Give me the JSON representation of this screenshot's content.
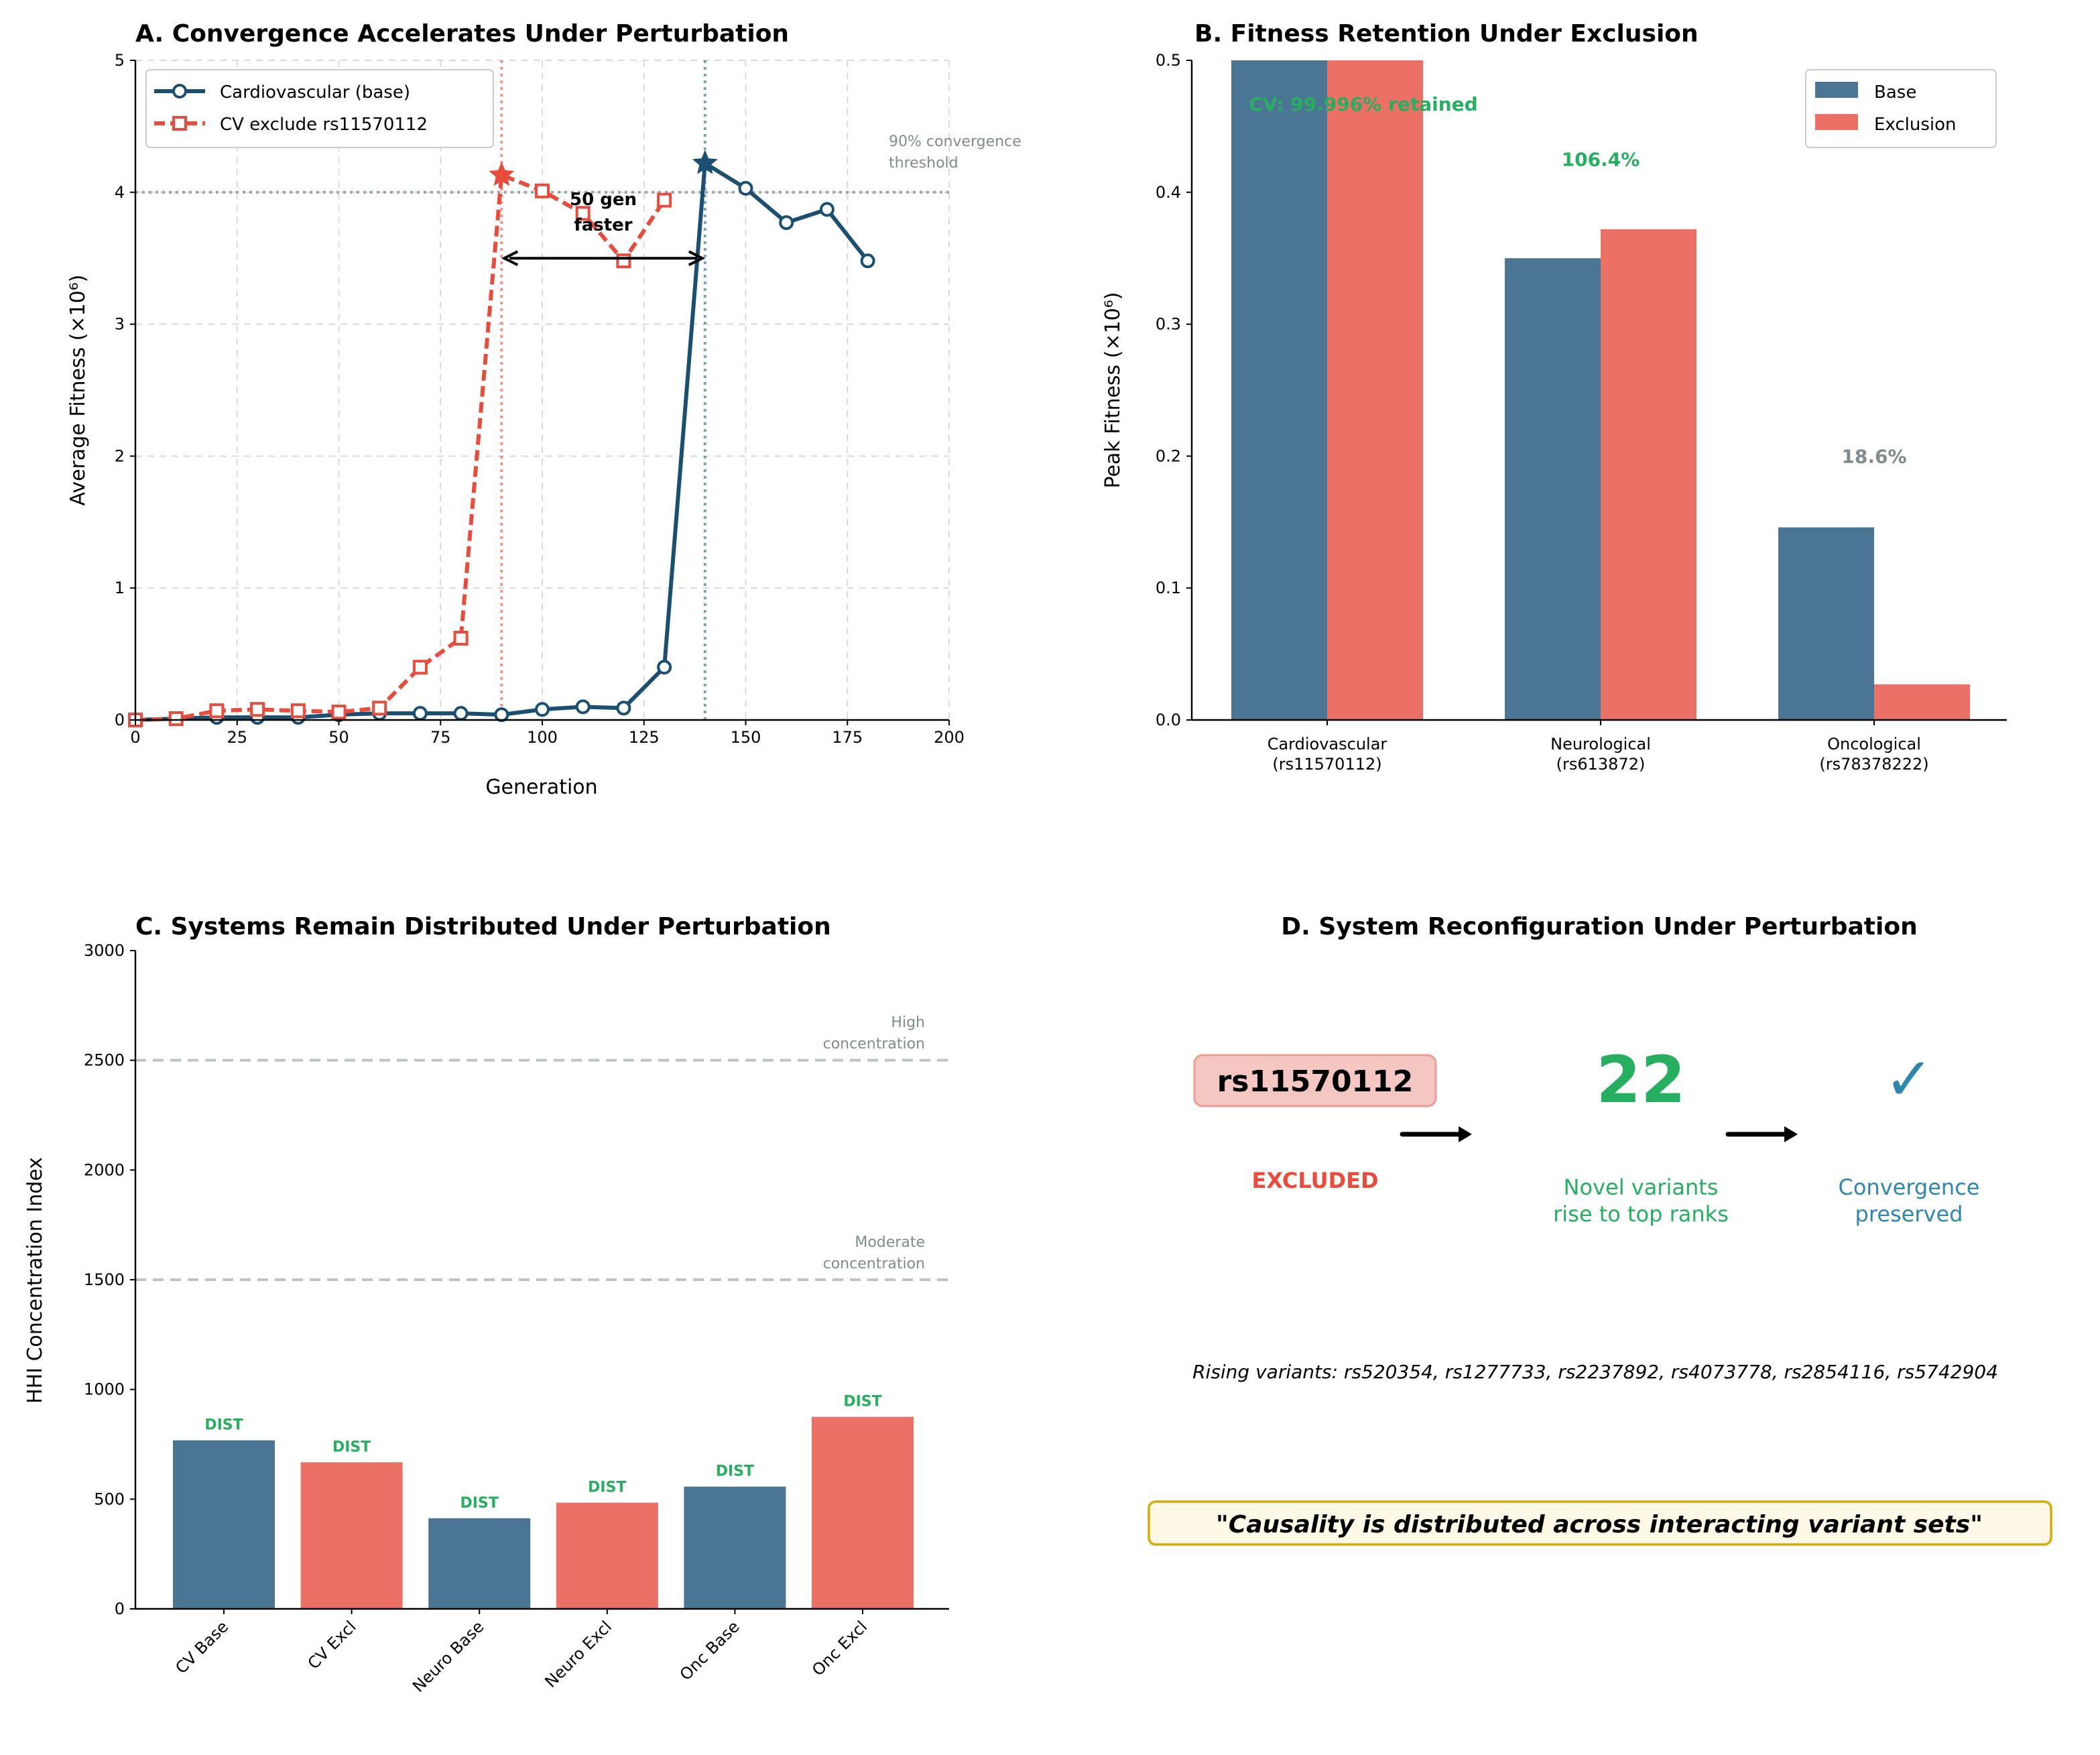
{
  "colors": {
    "base": "#1a4f72",
    "exclusion": "#e74c3c",
    "bar_base": "#4a7694",
    "bar_excl": "#eb7065",
    "green": "#27ae60",
    "blue": "#2e86ab",
    "gray": "#7f8c8d"
  },
  "chart_data": [
    {
      "type": "line",
      "title": "A. Convergence Accelerates Under Perturbation",
      "xlabel": "Generation",
      "ylabel": "Average Fitness (×10⁶)",
      "xlim": [
        0,
        200
      ],
      "ylim": [
        0,
        5
      ],
      "xticks": [
        "0",
        "25",
        "50",
        "75",
        "100",
        "125",
        "150",
        "175",
        "200"
      ],
      "yticks": [
        "0",
        "1",
        "2",
        "3",
        "4",
        "5"
      ],
      "grid": true,
      "legend_position": "top-left",
      "series": [
        {
          "name": "Cardiovascular (base)",
          "x": [
            0,
            10,
            20,
            30,
            40,
            50,
            60,
            70,
            80,
            90,
            100,
            110,
            120,
            130,
            140,
            150,
            160,
            170,
            180
          ],
          "y": [
            0,
            0.01,
            0.02,
            0.02,
            0.02,
            0.04,
            0.05,
            0.05,
            0.05,
            0.04,
            0.08,
            0.1,
            0.09,
            0.4,
            4.22,
            4.03,
            3.77,
            3.87,
            3.48
          ],
          "convergence_x": 140
        },
        {
          "name": "CV exclude rs11570112",
          "x": [
            0,
            10,
            20,
            30,
            40,
            50,
            60,
            70,
            80,
            90,
            100,
            110,
            120,
            130
          ],
          "y": [
            0,
            0.01,
            0.07,
            0.08,
            0.07,
            0.06,
            0.09,
            0.4,
            0.62,
            4.13,
            4.01,
            3.84,
            3.48,
            3.94
          ],
          "convergence_x": 90
        }
      ],
      "threshold": {
        "y": 4,
        "label_line1": "90% convergence",
        "label_line2": "threshold"
      },
      "annotation": {
        "line1": "50 gen",
        "line2": "faster",
        "arrow_from_x": 140,
        "arrow_to_x": 90,
        "arrow_y": 3.5
      }
    },
    {
      "type": "bar",
      "title": "B. Fitness Retention Under Exclusion",
      "ylabel": "Peak Fitness (×10⁶)",
      "ylim": [
        0,
        0.5
      ],
      "yticks": [
        "0.0",
        "0.1",
        "0.2",
        "0.3",
        "0.4",
        "0.5"
      ],
      "categories": [
        [
          "Cardiovascular",
          "(rs11570112)"
        ],
        [
          "Neurological",
          "(rs613872)"
        ],
        [
          "Oncological",
          "(rs78378222)"
        ]
      ],
      "legend_position": "top-right",
      "series": [
        {
          "name": "Base",
          "values": [
            0.5,
            0.35,
            0.146
          ]
        },
        {
          "name": "Exclusion",
          "values": [
            0.5,
            0.372,
            0.027
          ]
        }
      ],
      "annotations": [
        {
          "text": "CV: 99.996% retained",
          "color": "#27ae60",
          "y": 0.467
        },
        {
          "text": "106.4%",
          "color": "#27ae60",
          "y": 0.425
        },
        {
          "text": "18.6%",
          "color": "#7f8c8d",
          "y": 0.2
        }
      ]
    },
    {
      "type": "bar",
      "title": "C. Systems Remain Distributed Under Perturbation",
      "ylabel": "HHI Concentration Index",
      "ylim": [
        0,
        3000
      ],
      "yticks": [
        "0",
        "500",
        "1000",
        "1500",
        "2000",
        "2500",
        "3000"
      ],
      "categories": [
        "CV Base",
        "CV Excl",
        "Neuro Base",
        "Neuro Excl",
        "Onc Base",
        "Onc Excl"
      ],
      "values": [
        768,
        668,
        413,
        484,
        557,
        875
      ],
      "bar_types": [
        "base",
        "excl",
        "base",
        "excl",
        "base",
        "excl"
      ],
      "bar_labels": [
        "DIST",
        "DIST",
        "DIST",
        "DIST",
        "DIST",
        "DIST"
      ],
      "reference_lines": [
        {
          "y": 2500,
          "line1": "High",
          "line2": "concentration"
        },
        {
          "y": 1500,
          "line1": "Moderate",
          "line2": "concentration"
        }
      ]
    }
  ],
  "panel_d": {
    "title": "D. System Reconfiguration Under Perturbation",
    "excluded_variant": "rs11570112",
    "excluded_label": "EXCLUDED",
    "novel_count": "22",
    "novel_line1": "Novel variants",
    "novel_line2": "rise to top ranks",
    "check_icon": "check-mark-icon",
    "check_glyph": "✓",
    "convergence_line1": "Convergence",
    "convergence_line2": "preserved",
    "rising_variants": "Rising variants: rs520354, rs1277733, rs2237892, rs4073778, rs2854116, rs5742904",
    "quote": "\"Causality is distributed across interacting variant sets\""
  }
}
